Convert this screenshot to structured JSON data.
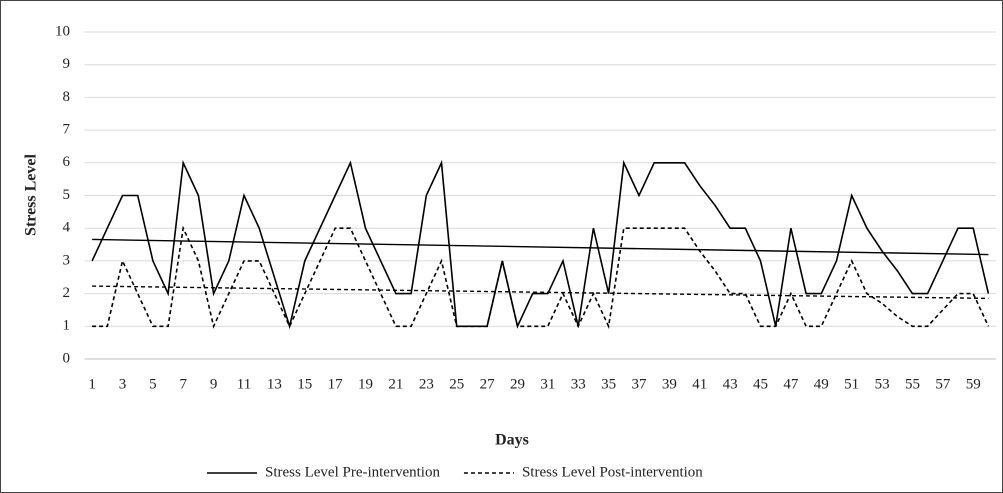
{
  "chart_data": {
    "type": "line",
    "y_label": "Stress Level",
    "x_label": "Days",
    "categories": [
      1,
      null,
      3,
      null,
      5,
      null,
      7,
      null,
      9,
      null,
      11,
      null,
      13,
      null,
      15,
      null,
      17,
      null,
      19,
      null,
      21,
      null,
      23,
      null,
      25,
      null,
      27,
      null,
      29,
      null,
      31,
      null,
      33,
      null,
      35,
      null,
      37,
      null,
      39,
      null,
      41,
      null,
      43,
      null,
      45,
      null,
      47,
      null,
      49,
      null,
      51,
      null,
      53,
      null,
      55,
      null,
      57,
      null,
      59,
      null
    ],
    "series": [
      {
        "name": "Stress Level Pre-intervention",
        "color": "#000000",
        "line_style": "solid",
        "values": [
          3,
          4,
          5,
          5,
          3,
          2,
          6,
          5,
          2,
          3,
          5,
          4,
          2.5,
          1,
          3,
          4,
          5,
          6,
          4,
          3,
          2,
          2,
          5,
          6,
          1,
          1,
          1,
          3,
          1,
          2,
          2,
          3,
          1,
          4,
          2,
          6,
          5,
          6,
          6,
          6,
          5.3,
          4.7,
          4,
          4,
          3,
          1,
          4,
          2,
          2,
          3,
          5,
          4,
          3.3,
          2.7,
          2,
          2,
          3,
          4,
          4,
          2
        ]
      },
      {
        "name": "Stress Level Post-intervention",
        "color": "#000000",
        "line_style": "dashed",
        "values": [
          1,
          1,
          3,
          2,
          1,
          1,
          4,
          3,
          1,
          2,
          3,
          3,
          2,
          1,
          2,
          3,
          4,
          4,
          3,
          2,
          1,
          1,
          2,
          3,
          1,
          1,
          1,
          3,
          1,
          1,
          1,
          2,
          1,
          2,
          1,
          4,
          4,
          4,
          4,
          4,
          3.3,
          2.7,
          2,
          2,
          1,
          1,
          2,
          1,
          1,
          2,
          3,
          2,
          1.7,
          1.3,
          1,
          1,
          1.5,
          2,
          2,
          1
        ]
      }
    ],
    "trendline": "linear",
    "ylim": [
      0,
      10
    ],
    "yticks": [
      0,
      1,
      2,
      3,
      4,
      5,
      6,
      7,
      8,
      9,
      10
    ],
    "grid": true
  }
}
